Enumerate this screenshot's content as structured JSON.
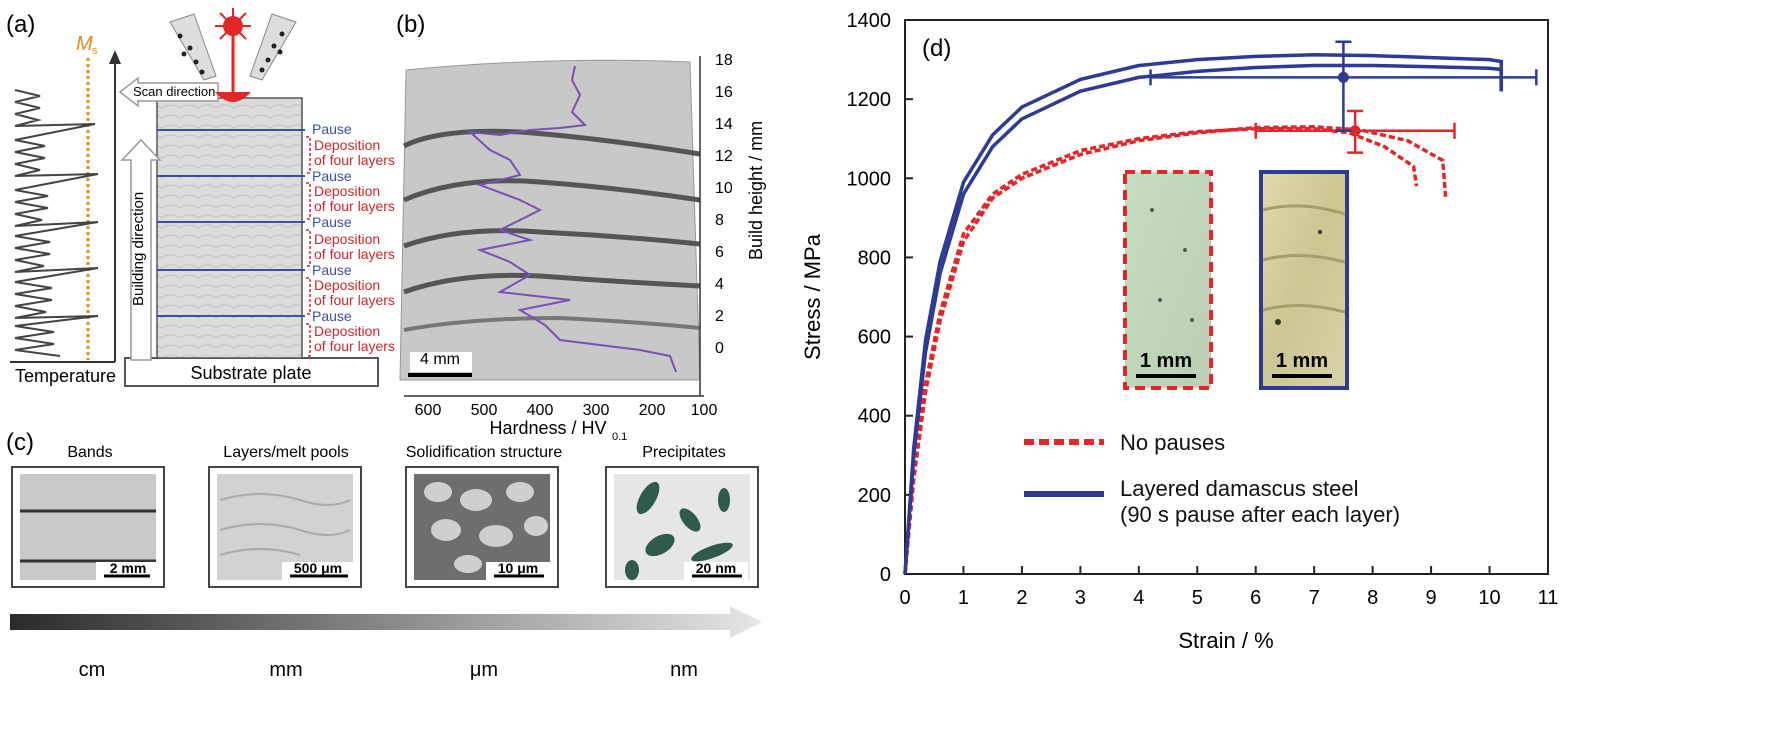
{
  "panel_labels": {
    "a": "(a)",
    "b": "(b)",
    "c": "(c)",
    "d": "(d)"
  },
  "panel_a": {
    "ms_label": "M",
    "ms_sub": "s",
    "scan_direction": "Scan direction",
    "building_direction": "Building direction",
    "temperature": "Temperature",
    "substrate": "Substrate plate",
    "pause": "Pause",
    "deposition_line1": "Deposition",
    "deposition_line2": "of four layers",
    "colors": {
      "ms": "#e38a1c",
      "pause": "#3a4fa0",
      "deposition": "#c9282d",
      "laser": "#e52628"
    }
  },
  "panel_b": {
    "scale_bar": "4 mm",
    "y_label": "Build height / mm",
    "y_ticks": [
      "18",
      "16",
      "14",
      "12",
      "10",
      "8",
      "6",
      "4",
      "2",
      "0"
    ],
    "x_label": "Hardness / HV",
    "x_sub": "0.1",
    "x_ticks": [
      "600",
      "500",
      "400",
      "300",
      "200",
      "100"
    ],
    "profile_color": "#7a4fb5"
  },
  "panel_c": {
    "items": [
      {
        "title": "Bands",
        "scale": "2 mm"
      },
      {
        "title": "Layers/melt pools",
        "scale": "500 μm"
      },
      {
        "title": "Solidification structure",
        "scale": "10 μm"
      },
      {
        "title": "Precipitates",
        "scale": "20 nm"
      }
    ],
    "units": [
      "cm",
      "mm",
      "μm",
      "nm"
    ]
  },
  "panel_d": {
    "chart_data": {
      "type": "line",
      "xlabel": "Strain / %",
      "ylabel": "Stress / MPa",
      "xlim": [
        0,
        11
      ],
      "ylim": [
        0,
        1400
      ],
      "xticks": [
        0,
        1,
        2,
        3,
        4,
        5,
        6,
        7,
        8,
        9,
        10,
        11
      ],
      "yticks": [
        0,
        200,
        400,
        600,
        800,
        1000,
        1200,
        1400
      ],
      "grid": false,
      "legend_position": "bottom-center",
      "series": [
        {
          "name": "No pauses",
          "style": "dashed",
          "color": "#e2262b",
          "curves": [
            {
              "x": [
                0,
                0.15,
                0.35,
                0.6,
                1.0,
                1.5,
                2.0,
                3.0,
                4.0,
                5.0,
                6.0,
                7.0,
                7.6,
                8.2,
                8.7,
                8.75
              ],
              "y": [
                0,
                260,
                480,
                660,
                860,
                960,
                1010,
                1070,
                1100,
                1118,
                1125,
                1125,
                1115,
                1080,
                1030,
                980
              ]
            },
            {
              "x": [
                0,
                0.15,
                0.35,
                0.6,
                1.0,
                1.5,
                2.0,
                3.0,
                4.0,
                5.0,
                6.0,
                7.0,
                7.8,
                8.6,
                9.2,
                9.25
              ],
              "y": [
                0,
                240,
                460,
                640,
                840,
                950,
                1000,
                1060,
                1095,
                1115,
                1128,
                1130,
                1122,
                1095,
                1045,
                950
              ]
            }
          ],
          "error_bar": {
            "x": 7.7,
            "y": 1120,
            "x_err": [
              6.0,
              9.4
            ],
            "y_err": [
              1065,
              1170
            ]
          }
        },
        {
          "name": "Layered damascus steel\n(90 s pause after each layer)",
          "style": "solid",
          "color": "#2e3a94",
          "curves": [
            {
              "x": [
                0,
                0.15,
                0.35,
                0.6,
                1.0,
                1.5,
                2.0,
                3.0,
                4.0,
                5.0,
                6.0,
                7.0,
                8.0,
                9.0,
                10.0,
                10.2,
                10.2
              ],
              "y": [
                0,
                300,
                560,
                760,
                960,
                1080,
                1150,
                1220,
                1255,
                1270,
                1280,
                1285,
                1285,
                1282,
                1278,
                1275,
                1220
              ]
            },
            {
              "x": [
                0,
                0.15,
                0.35,
                0.6,
                1.0,
                1.5,
                2.0,
                3.0,
                4.0,
                5.0,
                6.0,
                7.0,
                8.0,
                9.0,
                10.0,
                10.2,
                10.2
              ],
              "y": [
                0,
                320,
                590,
                790,
                990,
                1110,
                1180,
                1250,
                1285,
                1300,
                1308,
                1312,
                1310,
                1305,
                1300,
                1295,
                1220
              ]
            }
          ],
          "error_bar": {
            "x": 7.5,
            "y": 1255,
            "x_err": [
              4.2,
              10.8
            ],
            "y_err": [
              1120,
              1345
            ]
          }
        }
      ],
      "insets": [
        {
          "label": "1 mm",
          "border_color": "#e2262b",
          "border_style": "dashed"
        },
        {
          "label": "1 mm",
          "border_color": "#2e3a94",
          "border_style": "solid"
        }
      ]
    }
  }
}
